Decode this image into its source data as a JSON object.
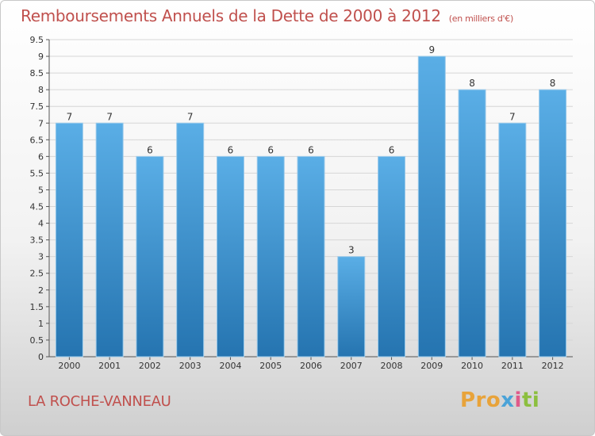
{
  "chart_data": {
    "type": "bar",
    "title": "Remboursements Annuels de la Dette de 2000 à 2012",
    "subtitle": "(en milliers d'€)",
    "categories": [
      "2000",
      "2001",
      "2002",
      "2003",
      "2004",
      "2005",
      "2006",
      "2007",
      "2008",
      "2009",
      "2010",
      "2011",
      "2012"
    ],
    "values": [
      7,
      7,
      6,
      7,
      6,
      6,
      6,
      3,
      6,
      9,
      8,
      7,
      8
    ],
    "data_labels": [
      "7",
      "7",
      "6",
      "7",
      "6",
      "6",
      "6",
      "3",
      "6",
      "9",
      "8",
      "7",
      "8"
    ],
    "y_ticks": [
      "0",
      "0.5",
      "1",
      "1.5",
      "2",
      "2.5",
      "3",
      "3.5",
      "4",
      "4.5",
      "5",
      "5.5",
      "6",
      "6.5",
      "7",
      "7.5",
      "8",
      "8.5",
      "9",
      "9.5"
    ],
    "ylim": [
      0,
      9.5
    ],
    "grid": true,
    "xlabel": "",
    "ylabel": "",
    "bar_color_light": "#5aaee6",
    "bar_color_dark": "#2574b0"
  },
  "commune": "LA ROCHE-VANNEAU",
  "logo": {
    "p1": "Pro",
    "p2": "x",
    "p3": "i",
    "p4": "ti"
  },
  "colors": {
    "title": "#c0504d"
  }
}
